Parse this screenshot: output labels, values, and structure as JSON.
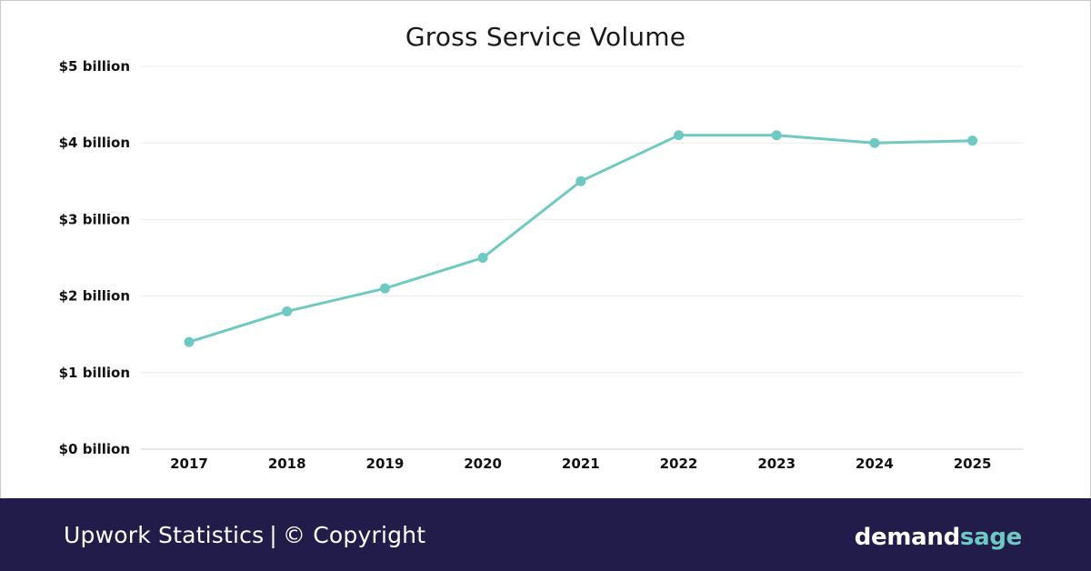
{
  "colors": {
    "line": "#6ec9c2",
    "footer_bg": "#221c4a",
    "grid": "#ebebeb",
    "brand_accent": "#6ec9c2"
  },
  "footer": {
    "left_text": "Upwork Statistics",
    "separator": "|",
    "copyright": "© Copyright",
    "brand_part1": "demand",
    "brand_part2": "sage"
  },
  "chart_data": {
    "type": "line",
    "title": "Gross Service Volume",
    "xlabel": "",
    "ylabel": "",
    "categories": [
      "2017",
      "2018",
      "2019",
      "2020",
      "2021",
      "2022",
      "2023",
      "2024",
      "2025"
    ],
    "series": [
      {
        "values": [
          1.4,
          1.8,
          2.1,
          2.5,
          3.5,
          4.1,
          4.1,
          4.0,
          4.03
        ]
      }
    ],
    "ylim": [
      0,
      5
    ],
    "yticks": [
      0,
      1,
      2,
      3,
      4,
      5
    ],
    "ytick_labels": [
      "$0 billion",
      "$1 billion",
      "$2 billion",
      "$3 billion",
      "$4 billion",
      "$5 billion"
    ],
    "grid": true,
    "legend": "none"
  }
}
